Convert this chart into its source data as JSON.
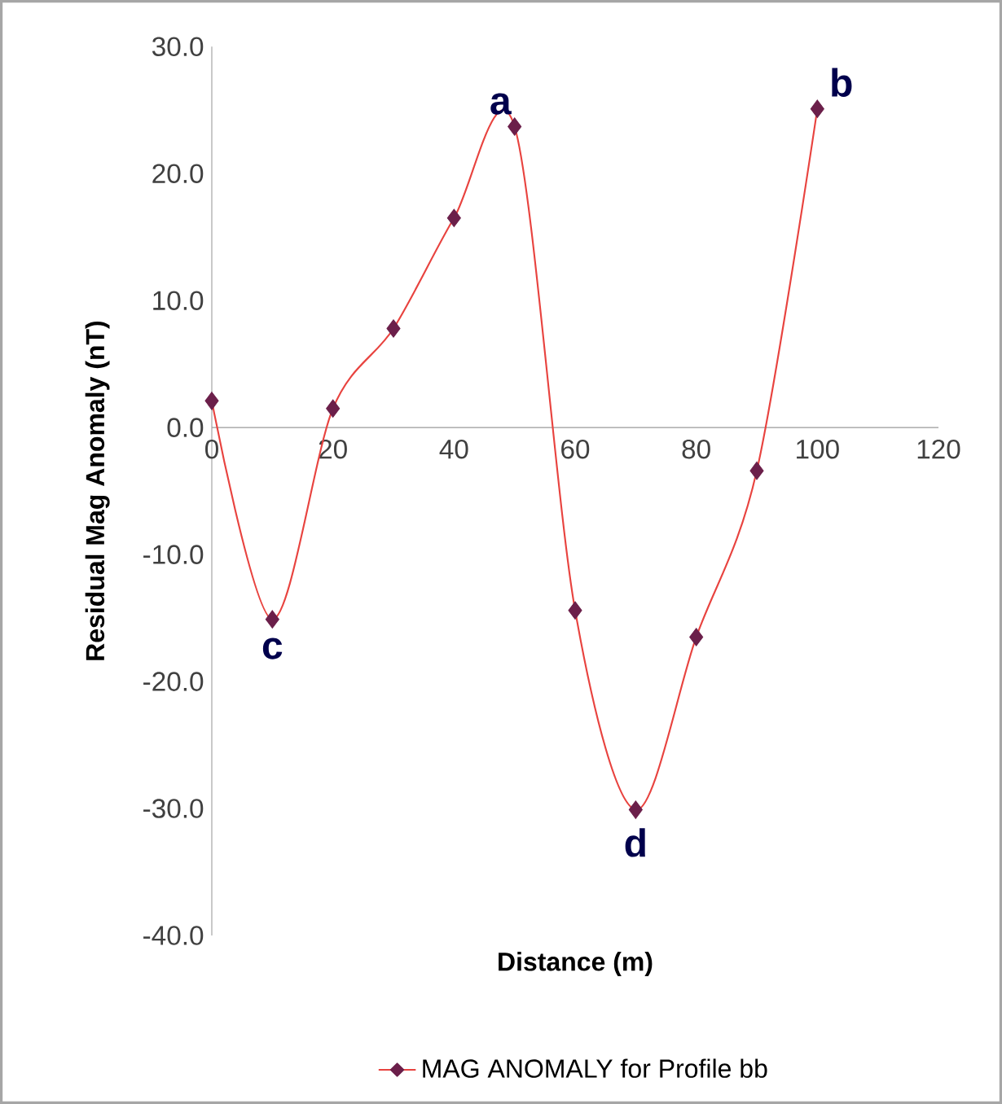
{
  "chart_data": {
    "type": "line",
    "xlabel": "Distance (m)",
    "ylabel": "Residual Mag Anomaly (nT)",
    "x": [
      0,
      10,
      20,
      30,
      40,
      50,
      60,
      70,
      80,
      90,
      100
    ],
    "series": [
      {
        "name": "MAG ANOMALY for Profile bb",
        "color": "#e8433f",
        "colors": [
          "#6b1f4a",
          "#6b1f4a",
          "#6b1f4a",
          "#6b1f4a",
          "#6b1f4a",
          "#6b1f4a",
          "#6b1f4a",
          "#6b1f4a",
          "#6b1f4a",
          "#6b1f4a",
          "#6b1f4a"
        ],
        "values": [
          2.1,
          -15.1,
          1.5,
          7.8,
          16.5,
          23.7,
          -14.4,
          -30.1,
          -16.5,
          -3.4,
          25.1
        ]
      }
    ],
    "xlim": [
      0,
      120
    ],
    "xticks": [
      0,
      20,
      40,
      60,
      80,
      100,
      120
    ],
    "ylim": [
      -40,
      30
    ],
    "yticks": [
      {
        "value": -40,
        "label": "-40.0"
      },
      {
        "value": -30,
        "label": "-30.0"
      },
      {
        "value": -20,
        "label": "-20.0"
      },
      {
        "value": -10,
        "label": "-10.0"
      },
      {
        "value": 0,
        "label": "0.0"
      },
      {
        "value": 10,
        "label": "10.0"
      },
      {
        "value": 20,
        "label": "20.0"
      },
      {
        "value": 30,
        "label": "30.0"
      }
    ],
    "marker": "diamond",
    "line_style": "solid",
    "grid": false,
    "legend": "bottom",
    "annotations": [
      {
        "text": "a",
        "x": 50,
        "y": 23.7
      },
      {
        "text": "b",
        "x": 100,
        "y": 25.1
      },
      {
        "text": "c",
        "x": 10,
        "y": -15.1
      },
      {
        "text": "d",
        "x": 70,
        "y": -30.1
      }
    ]
  }
}
